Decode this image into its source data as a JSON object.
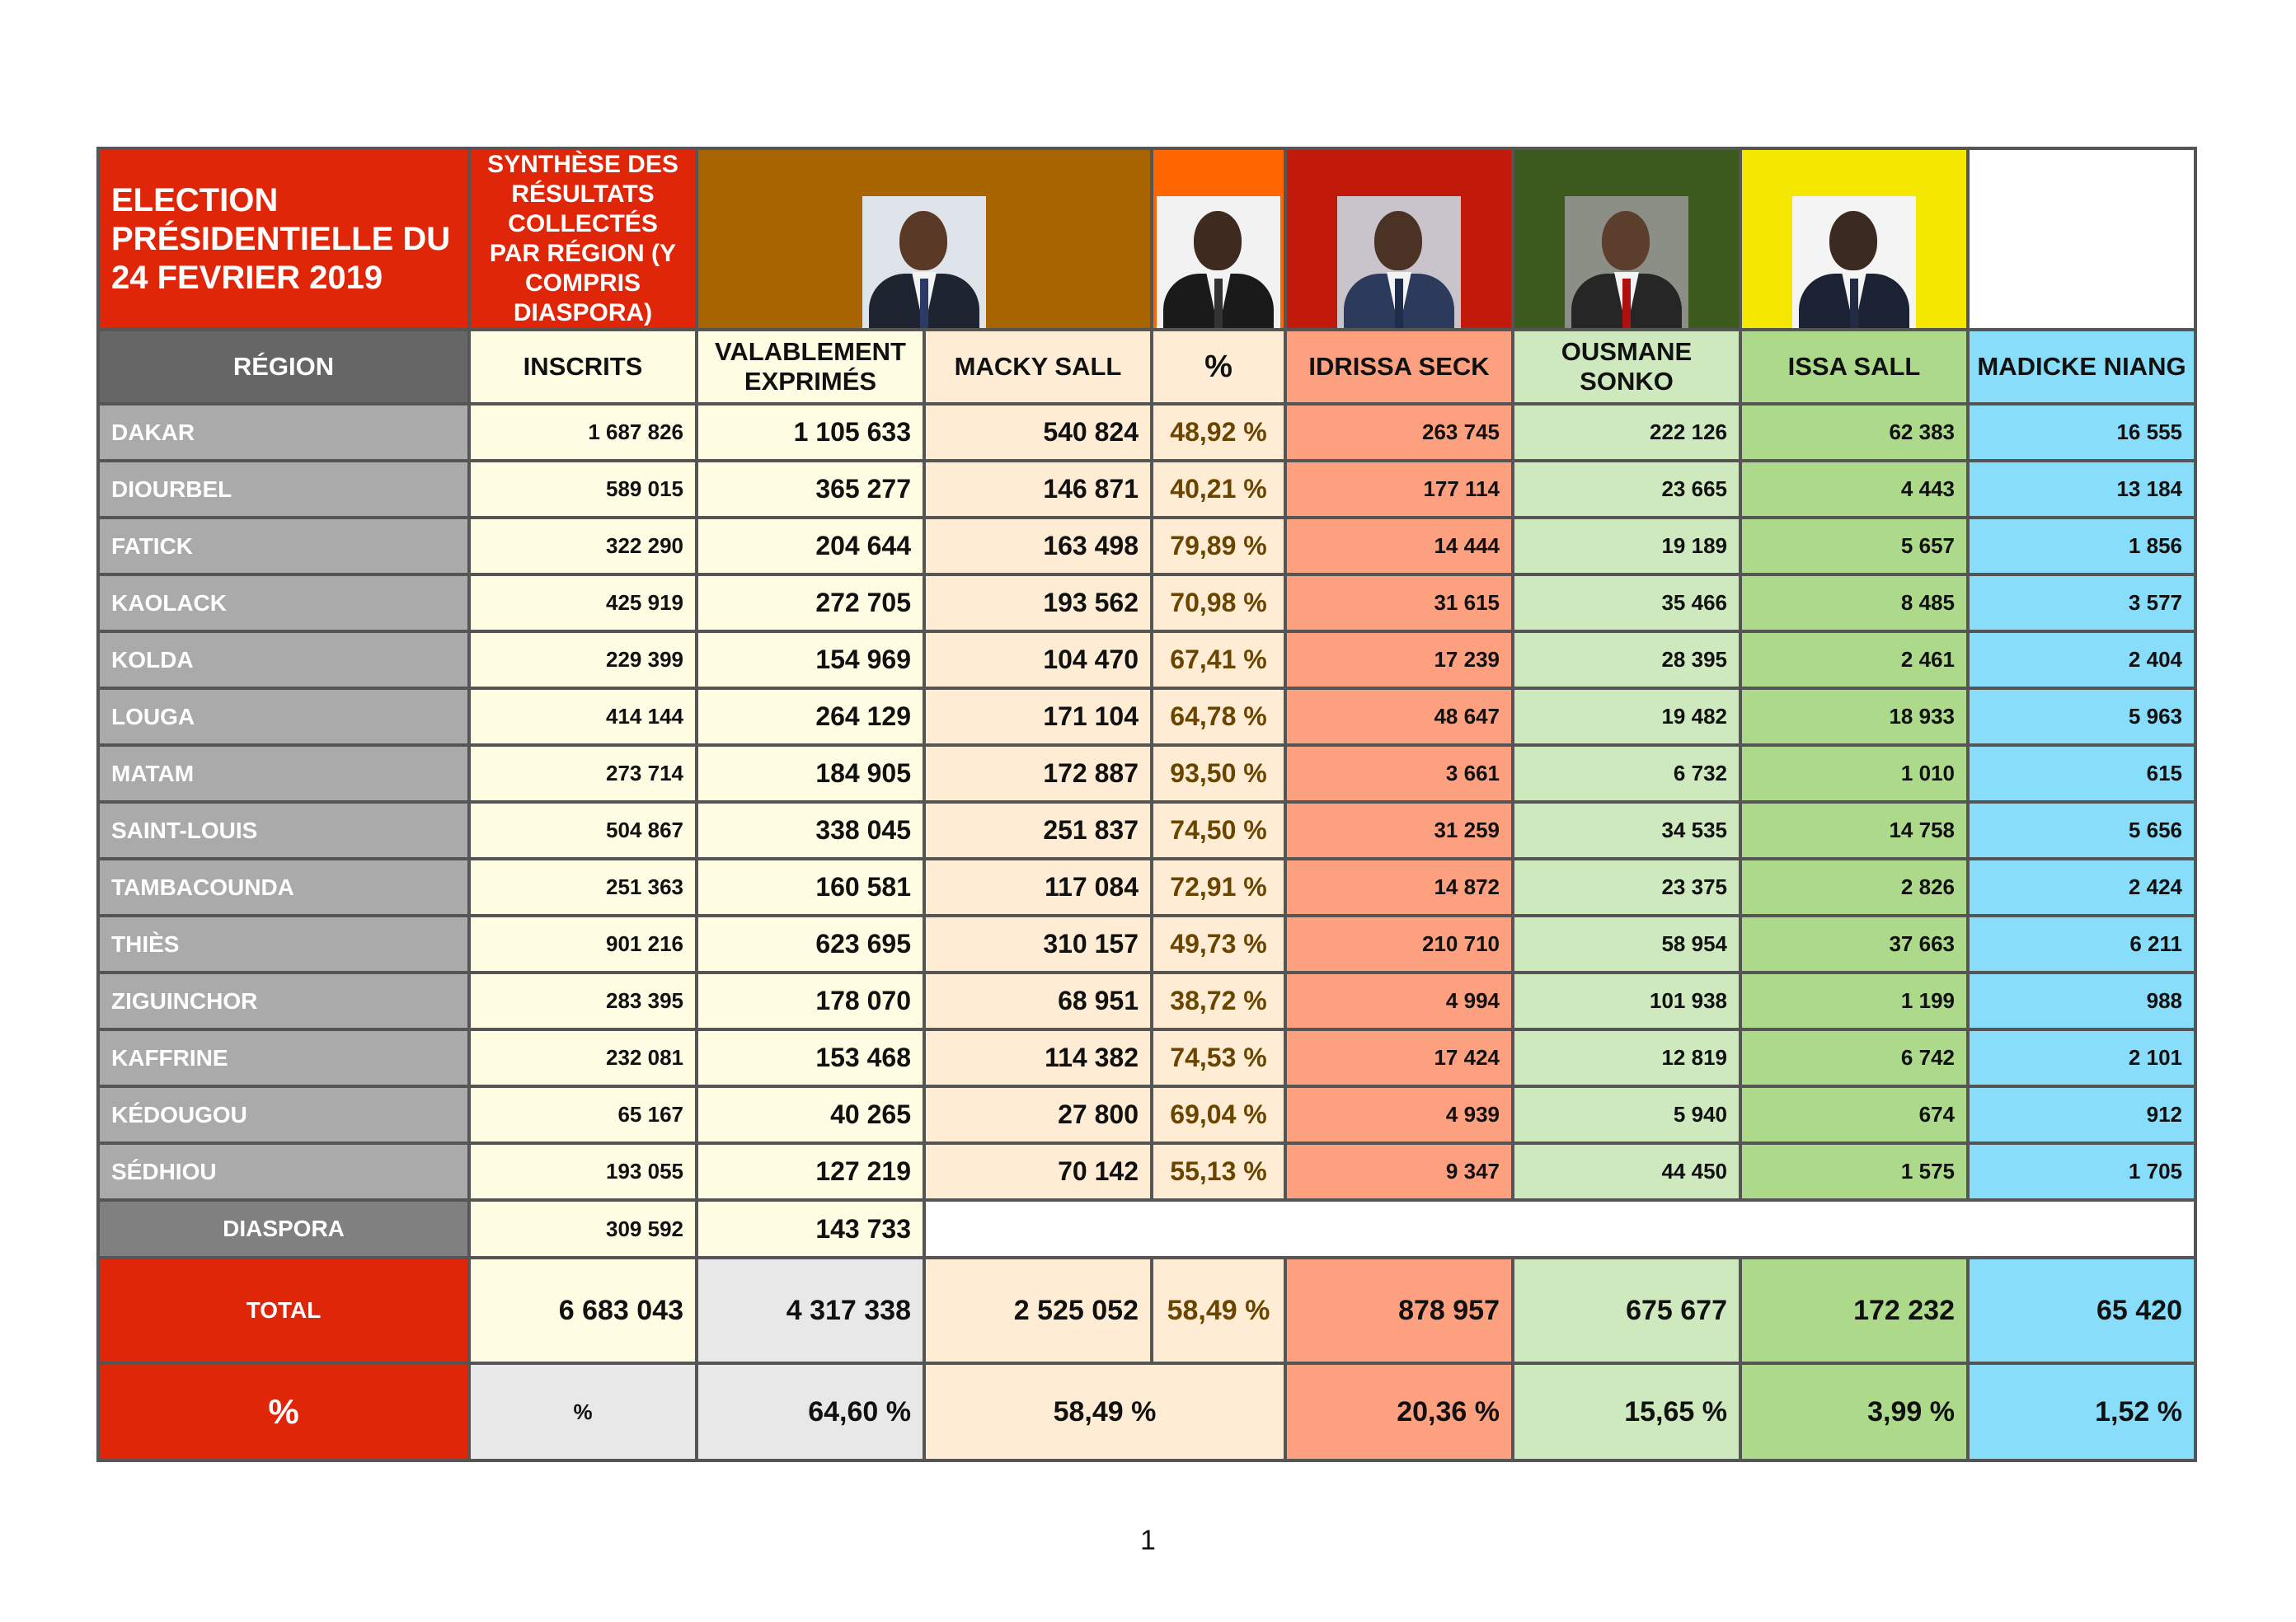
{
  "header": {
    "title": "ELECTION PRÉSIDENTIELLE DU 24 FEVRIER 2019",
    "synthesis": "SYNTHÈSE DES RÉSULTATS COLLECTÉS PAR RÉGION (Y COMPRIS DIASPORA)"
  },
  "colors": {
    "red": "#e02608",
    "macky": "#a86400",
    "idrissa": "#ff6600",
    "ousmane": "#c21a0a",
    "issa": "#3d5a1e",
    "madicke": "#f5e800"
  },
  "columns": {
    "region": "RÉGION",
    "inscrits": "INSCRITS",
    "valables": "VALABLEMENT EXPRIMÉS",
    "macky": "MACKY SALL",
    "pct": "%",
    "idrissa": "IDRISSA SECK",
    "ousmane": "OUSMANE SONKO",
    "issa": "ISSA SALL",
    "madicke": "MADICKE NIANG"
  },
  "rows": [
    {
      "region": "DAKAR",
      "inscrits": "1 687 826",
      "valables": "1 105 633",
      "macky": "540 824",
      "pct": "48,92 %",
      "idrissa": "263 745",
      "ousmane": "222 126",
      "issa": "62 383",
      "madicke": "16 555"
    },
    {
      "region": "DIOURBEL",
      "inscrits": "589 015",
      "valables": "365 277",
      "macky": "146 871",
      "pct": "40,21 %",
      "idrissa": "177 114",
      "ousmane": "23 665",
      "issa": "4 443",
      "madicke": "13 184"
    },
    {
      "region": "FATICK",
      "inscrits": "322 290",
      "valables": "204 644",
      "macky": "163 498",
      "pct": "79,89 %",
      "idrissa": "14 444",
      "ousmane": "19 189",
      "issa": "5 657",
      "madicke": "1 856"
    },
    {
      "region": "KAOLACK",
      "inscrits": "425 919",
      "valables": "272 705",
      "macky": "193 562",
      "pct": "70,98 %",
      "idrissa": "31 615",
      "ousmane": "35 466",
      "issa": "8 485",
      "madicke": "3 577"
    },
    {
      "region": "KOLDA",
      "inscrits": "229 399",
      "valables": "154 969",
      "macky": "104 470",
      "pct": "67,41 %",
      "idrissa": "17 239",
      "ousmane": "28 395",
      "issa": "2 461",
      "madicke": "2 404"
    },
    {
      "region": "LOUGA",
      "inscrits": "414 144",
      "valables": "264 129",
      "macky": "171 104",
      "pct": "64,78 %",
      "idrissa": "48 647",
      "ousmane": "19 482",
      "issa": "18 933",
      "madicke": "5 963"
    },
    {
      "region": "MATAM",
      "inscrits": "273 714",
      "valables": "184 905",
      "macky": "172 887",
      "pct": "93,50 %",
      "idrissa": "3 661",
      "ousmane": "6 732",
      "issa": "1 010",
      "madicke": "615"
    },
    {
      "region": "SAINT-LOUIS",
      "inscrits": "504 867",
      "valables": "338 045",
      "macky": "251 837",
      "pct": "74,50 %",
      "idrissa": "31 259",
      "ousmane": "34 535",
      "issa": "14 758",
      "madicke": "5 656"
    },
    {
      "region": "TAMBACOUNDA",
      "inscrits": "251 363",
      "valables": "160 581",
      "macky": "117 084",
      "pct": "72,91 %",
      "idrissa": "14 872",
      "ousmane": "23 375",
      "issa": "2 826",
      "madicke": "2 424"
    },
    {
      "region": "THIÈS",
      "inscrits": "901 216",
      "valables": "623 695",
      "macky": "310 157",
      "pct": "49,73 %",
      "idrissa": "210 710",
      "ousmane": "58 954",
      "issa": "37 663",
      "madicke": "6 211"
    },
    {
      "region": "ZIGUINCHOR",
      "inscrits": "283 395",
      "valables": "178 070",
      "macky": "68 951",
      "pct": "38,72 %",
      "idrissa": "4 994",
      "ousmane": "101 938",
      "issa": "1 199",
      "madicke": "988"
    },
    {
      "region": "KAFFRINE",
      "inscrits": "232 081",
      "valables": "153 468",
      "macky": "114 382",
      "pct": "74,53 %",
      "idrissa": "17 424",
      "ousmane": "12 819",
      "issa": "6 742",
      "madicke": "2 101"
    },
    {
      "region": "KÉDOUGOU",
      "inscrits": "65 167",
      "valables": "40 265",
      "macky": "27 800",
      "pct": "69,04 %",
      "idrissa": "4 939",
      "ousmane": "5 940",
      "issa": "674",
      "madicke": "912"
    },
    {
      "region": "SÉDHIOU",
      "inscrits": "193 055",
      "valables": "127 219",
      "macky": "70 142",
      "pct": "55,13 %",
      "idrissa": "9 347",
      "ousmane": "44 450",
      "issa": "1 575",
      "madicke": "1 705"
    }
  ],
  "diaspora": {
    "label": "DIASPORA",
    "inscrits": "309 592",
    "valables": "143 733"
  },
  "total": {
    "label": "TOTAL",
    "inscrits": "6 683 043",
    "valables": "4 317 338",
    "macky": "2 525 052",
    "pct": "58,49 %",
    "idrissa": "878 957",
    "ousmane": "675 677",
    "issa": "172 232",
    "madicke": "65 420"
  },
  "percent_row": {
    "label": "%",
    "inscrits": "%",
    "valables": "64,60 %",
    "macky": "58,49 %",
    "idrissa": "20,36 %",
    "ousmane": "15,65 %",
    "issa": "3,99 %",
    "madicke": "1,52 %"
  },
  "page_number": "1"
}
